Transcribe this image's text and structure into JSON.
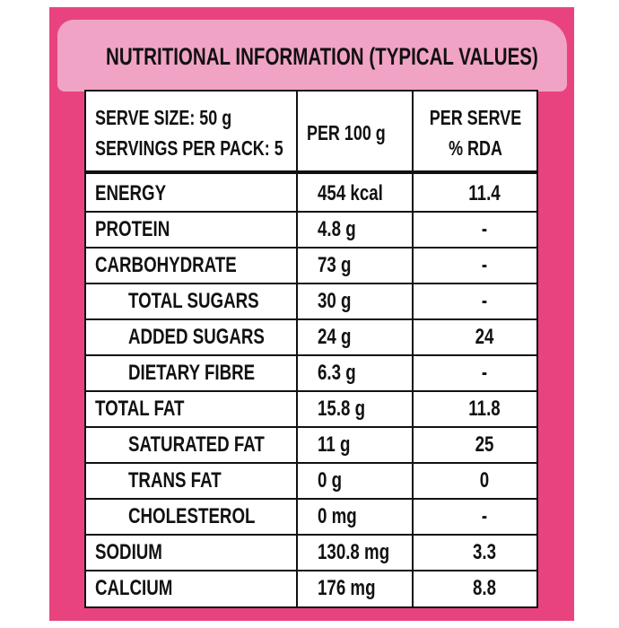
{
  "title": "NUTRITIONAL INFORMATION (TYPICAL VALUES)",
  "header": {
    "serve_size": "SERVE SIZE: 50 g",
    "servings": "SERVINGS PER PACK: 5",
    "per_100g": "PER 100 g",
    "per_serve": "PER SERVE",
    "rda": "% RDA"
  },
  "rows": [
    {
      "nutrient": "ENERGY",
      "per_100g": "454 kcal",
      "rda": "11.4"
    },
    {
      "nutrient": "PROTEIN",
      "per_100g": "4.8 g",
      "rda": "-"
    },
    {
      "nutrient": "CARBOHYDRATE",
      "per_100g": "73 g",
      "rda": "-",
      "subrows": [
        {
          "nutrient": "TOTAL SUGARS",
          "per_100g": "30 g",
          "rda": "-"
        },
        {
          "nutrient": "ADDED SUGARS",
          "per_100g": "24 g",
          "rda": "24"
        },
        {
          "nutrient": "DIETARY FIBRE",
          "per_100g": "6.3 g",
          "rda": "-"
        }
      ]
    },
    {
      "nutrient": "TOTAL FAT",
      "per_100g": "15.8 g",
      "rda": "11.8",
      "subrows": [
        {
          "nutrient": "SATURATED FAT",
          "per_100g": "11 g",
          "rda": "25"
        },
        {
          "nutrient": "TRANS FAT",
          "per_100g": "0 g",
          "rda": "0"
        },
        {
          "nutrient": "CHOLESTEROL",
          "per_100g": "0 mg",
          "rda": "-"
        }
      ]
    },
    {
      "nutrient": "SODIUM",
      "per_100g": "130.8 mg",
      "rda": "3.3"
    },
    {
      "nutrient": "CALCIUM",
      "per_100g": "176 mg",
      "rda": "8.8"
    }
  ]
}
